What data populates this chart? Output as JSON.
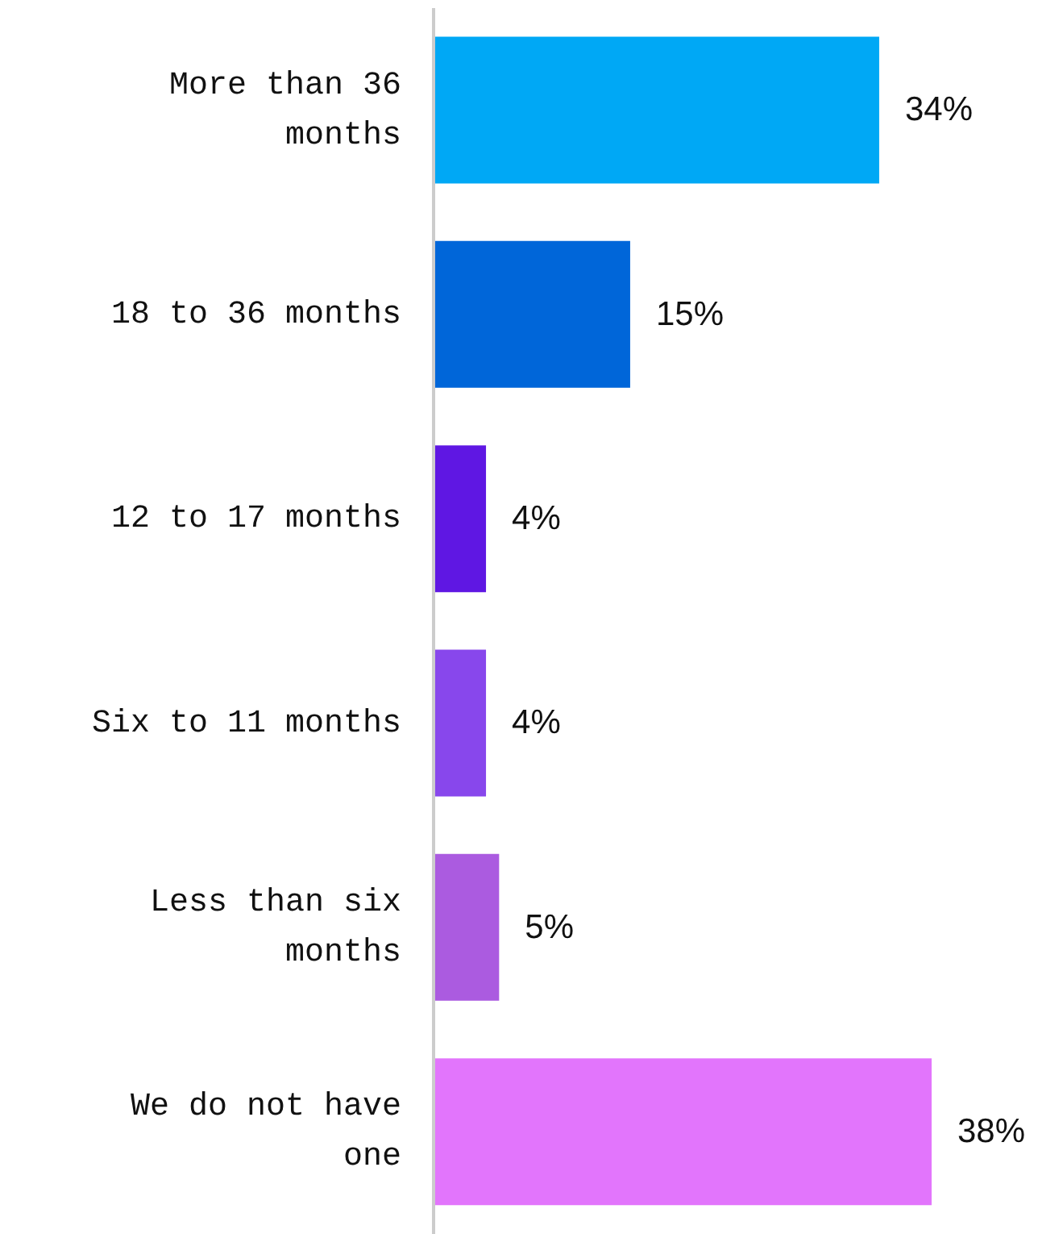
{
  "chart_data": {
    "type": "bar",
    "orientation": "horizontal",
    "categories": [
      "More than 36 months",
      "18 to 36 months",
      "12 to 17 months",
      "Six to 11 months",
      "Less than six months",
      "We do not have one"
    ],
    "values": [
      34,
      15,
      4,
      4,
      5,
      38
    ],
    "value_labels": [
      "34%",
      "15%",
      "4%",
      "4%",
      "5%",
      "38%"
    ],
    "colors": [
      "#00a8f5",
      "#0066d9",
      "#5f17e3",
      "#8847ec",
      "#ab5be0",
      "#e275fc"
    ],
    "grid": false,
    "legend": false
  }
}
